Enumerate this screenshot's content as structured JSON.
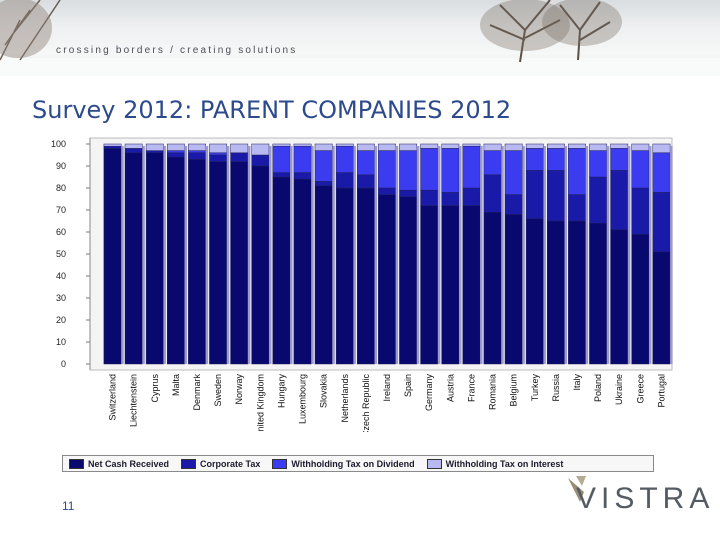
{
  "banner": {
    "tagline": "crossing borders / creating solutions"
  },
  "title": "Survey 2012: PARENT COMPANIES 2012",
  "page_number": "11",
  "logo": {
    "text": "VISTRA"
  },
  "colors": {
    "net_cash": "#08086e",
    "corporate_tax": "#1a1aa8",
    "withholding_dividend": "#3b3bf0",
    "withholding_interest": "#b9b9f2",
    "title": "#2c4a8c"
  },
  "chart_data": {
    "type": "bar",
    "stacked": true,
    "ylim": [
      0,
      100
    ],
    "yticks": [
      0,
      10,
      20,
      30,
      40,
      50,
      60,
      70,
      80,
      90,
      100
    ],
    "grid": false,
    "legend_position": "bottom",
    "categories": [
      "Switzerland",
      "Liechtenstein",
      "Cyprus",
      "Malta",
      "Denmark",
      "Sweden",
      "Norway",
      "United Kingdom",
      "Hungary",
      "Luxembourg",
      "Slovakia",
      "Netherlands",
      "Czech Republic",
      "Ireland",
      "Spain",
      "Germany",
      "Austria",
      "France",
      "Romania",
      "Belgium",
      "Turkey",
      "Russia",
      "Italy",
      "Poland",
      "Ukraine",
      "Greece",
      "Portugal"
    ],
    "category_labels": [
      "Switzerland",
      "Liechtenstein",
      "Cyprus",
      "Malta",
      "Denmark",
      "Sweden",
      "Norway",
      "United Kingdom",
      "Hungary",
      "Luxembourg",
      "Slovakia",
      "Netherlands",
      "Czech Republic",
      "Ireland",
      "Spain",
      "Germany",
      "Austria",
      "France",
      "Romania",
      "Belgium",
      "Turkey",
      "Russia",
      "Italy",
      "Poland",
      "Ukraine",
      "Greece",
      "Portugal"
    ],
    "series": [
      {
        "name": "Net Cash Received",
        "values": [
          98,
          96,
          96,
          94,
          93,
          92,
          92,
          90,
          85,
          84,
          81,
          80,
          80,
          77,
          76,
          72,
          72,
          72,
          69,
          68,
          66,
          65,
          65,
          64,
          61,
          59,
          51
        ]
      },
      {
        "name": "Corporate Tax",
        "values": [
          1,
          2,
          1,
          2,
          3,
          3,
          4,
          5,
          2,
          3,
          2,
          7,
          6,
          3,
          3,
          7,
          6,
          8,
          17,
          9,
          22,
          23,
          12,
          21,
          27,
          21,
          27
        ]
      },
      {
        "name": "Withholding Tax on Dividend",
        "values": [
          0,
          0,
          0,
          1,
          1,
          1,
          0,
          0,
          12,
          12,
          14,
          12,
          11,
          17,
          18,
          19,
          20,
          19,
          11,
          20,
          10,
          10,
          21,
          12,
          10,
          17,
          18
        ]
      },
      {
        "name": "Withholding Tax on Interest",
        "values": [
          1,
          2,
          3,
          3,
          3,
          4,
          4,
          5,
          1,
          1,
          3,
          1,
          3,
          3,
          3,
          2,
          2,
          1,
          3,
          3,
          2,
          2,
          2,
          3,
          2,
          3,
          4
        ]
      }
    ]
  }
}
